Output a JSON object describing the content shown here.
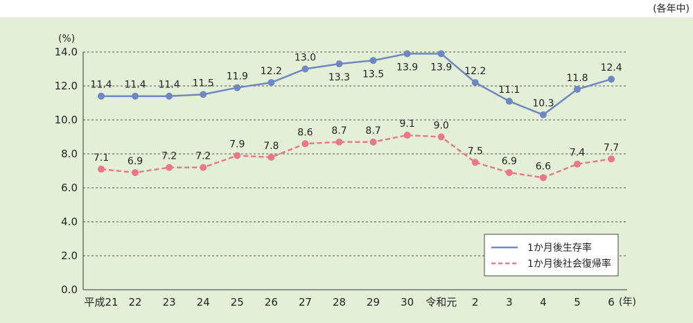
{
  "note": "(各年中)",
  "chart_data": {
    "type": "line",
    "ylabel": "(%)",
    "xlabel": "(年)",
    "ylim": [
      0,
      14
    ],
    "yticks": [
      "0.0",
      "2.0",
      "4.0",
      "6.0",
      "8.0",
      "10.0",
      "12.0",
      "14.0"
    ],
    "grid": true,
    "legend_position": "bottom-right",
    "categories": [
      "平成21",
      "22",
      "23",
      "24",
      "25",
      "26",
      "27",
      "28",
      "29",
      "30",
      "令和元",
      "2",
      "3",
      "4",
      "5",
      "6"
    ],
    "series": [
      {
        "name": "1か月後生存率",
        "color": "#6f87c2",
        "dash": "solid",
        "values": [
          11.4,
          11.4,
          11.4,
          11.5,
          11.9,
          12.2,
          13.0,
          13.3,
          13.5,
          13.9,
          13.9,
          12.2,
          11.1,
          10.3,
          11.8,
          12.4
        ],
        "labels": [
          "11.4",
          "11.4",
          "11.4",
          "11.5",
          "11.9",
          "12.2",
          "13.0",
          "13.3",
          "13.5",
          "13.9",
          "13.9",
          "12.2",
          "11.1",
          "10.3",
          "11.8",
          "12.4"
        ]
      },
      {
        "name": "1か月後社会復帰率",
        "color": "#e8788a",
        "dash": "dashed",
        "values": [
          7.1,
          6.9,
          7.2,
          7.2,
          7.9,
          7.8,
          8.6,
          8.7,
          8.7,
          9.1,
          9.0,
          7.5,
          6.9,
          6.6,
          7.4,
          7.7
        ],
        "labels": [
          "7.1",
          "6.9",
          "7.2",
          "7.2",
          "7.9",
          "7.8",
          "8.6",
          "8.7",
          "8.7",
          "9.1",
          "9.0",
          "7.5",
          "6.9",
          "6.6",
          "7.4",
          "7.7"
        ]
      }
    ]
  }
}
